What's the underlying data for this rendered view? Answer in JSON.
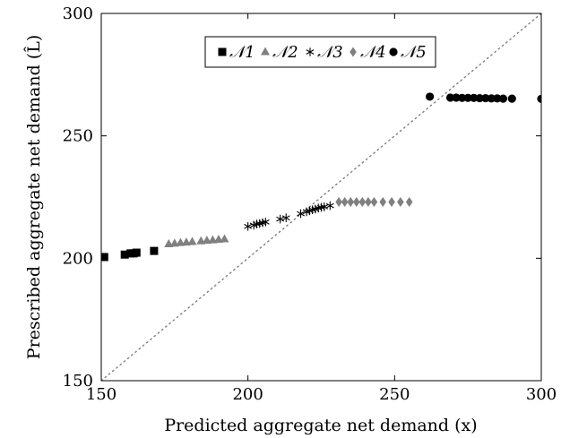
{
  "chart_data": {
    "type": "scatter",
    "xlabel": "Predicted aggregate net demand (x)",
    "ylabel": "Prescribed aggregate net demand (L̂)",
    "xlim": [
      150,
      300
    ],
    "ylim": [
      150,
      300
    ],
    "x_ticks": [
      "150",
      "200",
      "250",
      "300"
    ],
    "y_ticks": [
      "150",
      "200",
      "250",
      "300"
    ],
    "grid": false,
    "legend_position": "top-center",
    "reference_line": {
      "type": "diagonal y = x",
      "style": "dotted",
      "color": "#808080"
    },
    "series": [
      {
        "name": "𝒩1",
        "marker": "square",
        "color": "#000000",
        "points": [
          [
            151,
            200.5
          ],
          [
            158,
            201.5
          ],
          [
            160,
            202
          ],
          [
            161,
            202
          ],
          [
            162,
            202.3
          ],
          [
            168,
            203
          ]
        ]
      },
      {
        "name": "𝒩2",
        "marker": "triangle",
        "color": "#808080",
        "points": [
          [
            173,
            205.8
          ],
          [
            175,
            206
          ],
          [
            177,
            206.3
          ],
          [
            179,
            206.5
          ],
          [
            181,
            206.7
          ],
          [
            184,
            207
          ],
          [
            186,
            207.2
          ],
          [
            188,
            207.4
          ],
          [
            190,
            207.6
          ],
          [
            192,
            207.8
          ]
        ]
      },
      {
        "name": "𝒩3",
        "marker": "star",
        "color": "#000000",
        "points": [
          [
            200,
            213
          ],
          [
            202,
            213.5
          ],
          [
            203,
            214
          ],
          [
            204,
            214.2
          ],
          [
            205,
            214.5
          ],
          [
            206,
            214.8
          ],
          [
            211,
            216
          ],
          [
            213,
            216.5
          ],
          [
            218,
            218.2
          ],
          [
            220,
            219
          ],
          [
            221,
            219.4
          ],
          [
            222,
            219.8
          ],
          [
            223,
            220.1
          ],
          [
            224,
            220.5
          ],
          [
            225,
            220.8
          ],
          [
            226,
            221
          ],
          [
            228,
            221.5
          ]
        ]
      },
      {
        "name": "𝒩4",
        "marker": "diamond",
        "color": "#808080",
        "points": [
          [
            231,
            223
          ],
          [
            233,
            223
          ],
          [
            235,
            223
          ],
          [
            237,
            223
          ],
          [
            239,
            223
          ],
          [
            241,
            223
          ],
          [
            243,
            223
          ],
          [
            246,
            223
          ],
          [
            249,
            223
          ],
          [
            252,
            223
          ],
          [
            255,
            223
          ]
        ]
      },
      {
        "name": "𝒩5",
        "marker": "circle",
        "color": "#000000",
        "points": [
          [
            262,
            266
          ],
          [
            269,
            265.6
          ],
          [
            271,
            265.6
          ],
          [
            273,
            265.5
          ],
          [
            275,
            265.5
          ],
          [
            277,
            265.5
          ],
          [
            279,
            265.4
          ],
          [
            281,
            265.4
          ],
          [
            283,
            265.3
          ],
          [
            285,
            265.3
          ],
          [
            287,
            265.2
          ],
          [
            290,
            265.2
          ],
          [
            300,
            265.1
          ]
        ]
      }
    ]
  }
}
